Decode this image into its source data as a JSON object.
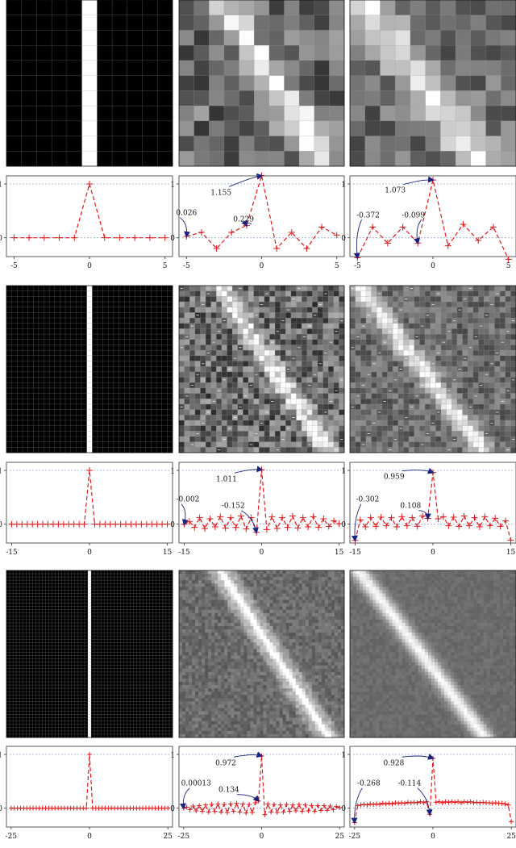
{
  "figure": {
    "colors": {
      "stem": "#e31a1c",
      "reference_line": "#8fa8c8",
      "annotation_arrow": "#1a237e",
      "axis": "#333333",
      "text": "#111111"
    }
  },
  "chart_data": [
    {
      "type": "heatmap",
      "n": 11,
      "pattern": "identity",
      "description_row": 1,
      "column": 1,
      "grid": true
    },
    {
      "type": "heatmap",
      "n": 11,
      "pattern": "noisy_diagonal",
      "seed": 11,
      "slope": 0.82,
      "width": 0.9,
      "noise": 0.45,
      "grid": true
    },
    {
      "type": "heatmap",
      "n": 11,
      "pattern": "noisy_diagonal",
      "seed": 17,
      "slope": 0.95,
      "width": 1.1,
      "noise": 0.35,
      "grid": true
    },
    {
      "type": "line",
      "x": [
        -5,
        -4,
        -3,
        -2,
        -1,
        0,
        1,
        2,
        3,
        4,
        5
      ],
      "y": [
        0,
        0,
        0,
        0,
        0,
        1,
        0,
        0,
        0,
        0,
        0
      ],
      "xticks": [
        "-5",
        "0",
        "5"
      ],
      "yticks": [
        "0",
        "1"
      ],
      "xlim": [
        -5.5,
        5.5
      ],
      "ylim": [
        -0.35,
        1.15
      ],
      "annotations": []
    },
    {
      "type": "line",
      "x": [
        -5,
        -4,
        -3,
        -2,
        -1,
        0,
        1,
        2,
        3,
        4,
        5
      ],
      "y": [
        0.026,
        0.1,
        -0.2,
        0.1,
        0.229,
        1.155,
        -0.2,
        0.1,
        -0.2,
        0.2,
        0.05
      ],
      "xticks": [
        "-5",
        "0",
        "5"
      ],
      "yticks": [
        "0",
        "1"
      ],
      "xlim": [
        -5.5,
        5.5
      ],
      "ylim": [
        -0.35,
        1.15
      ],
      "annotations": [
        {
          "text": "0.026",
          "point_index": 0,
          "text_x": -5.0,
          "text_y": 0.42
        },
        {
          "text": "0.229",
          "point_index": 4,
          "text_x": -1.2,
          "text_y": 0.3
        },
        {
          "text": "1.155",
          "point_index": 5,
          "text_x": -2.7,
          "text_y": 0.8
        }
      ]
    },
    {
      "type": "line",
      "x": [
        -5,
        -4,
        -3,
        -2,
        -1,
        0,
        1,
        2,
        3,
        4,
        5
      ],
      "y": [
        -0.372,
        0.2,
        -0.1,
        0.2,
        -0.099,
        1.073,
        -0.15,
        0.25,
        -0.05,
        0.2,
        -0.4
      ],
      "xticks": [
        "-5",
        "0",
        "5"
      ],
      "yticks": [
        "0",
        "1"
      ],
      "xlim": [
        -5.5,
        5.5
      ],
      "ylim": [
        -0.35,
        1.15
      ],
      "annotations": [
        {
          "text": "-0.372",
          "point_index": 0,
          "text_x": -4.3,
          "text_y": 0.38
        },
        {
          "text": "-0.099",
          "point_index": 4,
          "text_x": -1.3,
          "text_y": 0.38
        },
        {
          "text": "1.073",
          "point_index": 5,
          "text_x": -2.5,
          "text_y": 0.84
        }
      ]
    },
    {
      "type": "heatmap",
      "n": 31,
      "pattern": "identity",
      "grid": true
    },
    {
      "type": "heatmap",
      "n": 31,
      "pattern": "noisy_diagonal",
      "seed": 23,
      "slope": 0.82,
      "width": 1.4,
      "noise": 0.5,
      "grid": true,
      "dashes": true
    },
    {
      "type": "heatmap",
      "n": 31,
      "pattern": "noisy_diagonal",
      "seed": 29,
      "slope": 0.95,
      "width": 1.6,
      "noise": 0.3,
      "grid": true,
      "dashes": true
    },
    {
      "type": "line",
      "x": [
        -15,
        -14,
        -13,
        -12,
        -11,
        -10,
        -9,
        -8,
        -7,
        -6,
        -5,
        -4,
        -3,
        -2,
        -1,
        0,
        1,
        2,
        3,
        4,
        5,
        6,
        7,
        8,
        9,
        10,
        11,
        12,
        13,
        14,
        15
      ],
      "y": [
        0,
        0,
        0,
        0,
        0,
        0,
        0,
        0,
        0,
        0,
        0,
        0,
        0,
        0,
        0,
        1,
        0,
        0,
        0,
        0,
        0,
        0,
        0,
        0,
        0,
        0,
        0,
        0,
        0,
        0,
        0
      ],
      "xticks": [
        "-15",
        "0",
        "15"
      ],
      "yticks": [
        "0",
        "1"
      ],
      "xlim": [
        -16,
        16
      ],
      "ylim": [
        -0.35,
        1.15
      ],
      "annotations": []
    },
    {
      "type": "line",
      "x": [
        -15,
        -14,
        -13,
        -12,
        -11,
        -10,
        -9,
        -8,
        -7,
        -6,
        -5,
        -4,
        -3,
        -2,
        -1,
        0,
        1,
        2,
        3,
        4,
        5,
        6,
        7,
        8,
        9,
        10,
        11,
        12,
        13,
        14,
        15
      ],
      "y": [
        -0.002,
        0.05,
        -0.06,
        0.12,
        -0.08,
        0.1,
        -0.05,
        0.14,
        -0.07,
        0.12,
        -0.06,
        0.15,
        -0.09,
        0.12,
        -0.152,
        1.011,
        -0.1,
        0.14,
        -0.08,
        0.12,
        -0.06,
        0.15,
        -0.07,
        0.12,
        -0.05,
        0.14,
        -0.06,
        0.1,
        -0.04,
        0.06,
        0.01
      ],
      "xticks": [
        "-15",
        "0",
        "15"
      ],
      "yticks": [
        "0",
        "1"
      ],
      "xlim": [
        -16,
        16
      ],
      "ylim": [
        -0.35,
        1.15
      ],
      "annotations": [
        {
          "text": "-0.002",
          "point_index": 0,
          "text_x": -14.3,
          "text_y": 0.42
        },
        {
          "text": "-0.152",
          "point_index": 14,
          "text_x": -5.5,
          "text_y": 0.3
        },
        {
          "text": "1.011",
          "point_index": 15,
          "text_x": -6.8,
          "text_y": 0.8
        }
      ]
    },
    {
      "type": "line",
      "x": [
        -15,
        -14,
        -13,
        -12,
        -11,
        -10,
        -9,
        -8,
        -7,
        -6,
        -5,
        -4,
        -3,
        -2,
        -1,
        0,
        1,
        2,
        3,
        4,
        5,
        6,
        7,
        8,
        9,
        10,
        11,
        12,
        13,
        14,
        15
      ],
      "y": [
        -0.302,
        0.08,
        -0.05,
        0.12,
        -0.04,
        0.13,
        -0.03,
        0.12,
        -0.05,
        0.14,
        -0.03,
        0.12,
        -0.04,
        0.15,
        0.108,
        0.959,
        0.1,
        0.14,
        -0.03,
        0.13,
        -0.04,
        0.15,
        -0.03,
        0.12,
        -0.05,
        0.14,
        -0.03,
        0.11,
        -0.04,
        0.06,
        -0.3
      ],
      "xticks": [
        "-15",
        "0",
        "15"
      ],
      "yticks": [
        "0",
        "1"
      ],
      "xlim": [
        -16,
        16
      ],
      "ylim": [
        -0.35,
        1.15
      ],
      "annotations": [
        {
          "text": "-0.302",
          "point_index": 0,
          "text_x": -12.6,
          "text_y": 0.42
        },
        {
          "text": "0.108",
          "point_index": 14,
          "text_x": -4.3,
          "text_y": 0.3
        },
        {
          "text": "0.959",
          "point_index": 15,
          "text_x": -7.5,
          "text_y": 0.84
        }
      ]
    },
    {
      "type": "heatmap",
      "n": 51,
      "pattern": "identity",
      "grid": true
    },
    {
      "type": "heatmap",
      "n": 51,
      "pattern": "noisy_diagonal",
      "seed": 37,
      "slope": 0.82,
      "width": 2.4,
      "noise": 0.18,
      "grid": false,
      "ringing": true
    },
    {
      "type": "heatmap",
      "n": 51,
      "pattern": "noisy_diagonal",
      "seed": 41,
      "slope": 0.95,
      "width": 2.2,
      "noise": 0.08,
      "grid": false
    },
    {
      "type": "line",
      "x": [
        -25,
        -24,
        -23,
        -22,
        -21,
        -20,
        -19,
        -18,
        -17,
        -16,
        -15,
        -14,
        -13,
        -12,
        -11,
        -10,
        -9,
        -8,
        -7,
        -6,
        -5,
        -4,
        -3,
        -2,
        -1,
        0,
        1,
        2,
        3,
        4,
        5,
        6,
        7,
        8,
        9,
        10,
        11,
        12,
        13,
        14,
        15,
        16,
        17,
        18,
        19,
        20,
        21,
        22,
        23,
        24,
        25
      ],
      "y": [
        0,
        0,
        0,
        0,
        0,
        0,
        0,
        0,
        0,
        0,
        0,
        0,
        0,
        0,
        0,
        0,
        0,
        0,
        0,
        0,
        0,
        0,
        0,
        0,
        0,
        1,
        0,
        0,
        0,
        0,
        0,
        0,
        0,
        0,
        0,
        0,
        0,
        0,
        0,
        0,
        0,
        0,
        0,
        0,
        0,
        0,
        0,
        0,
        0,
        0,
        0
      ],
      "xticks": [
        "-25",
        "0",
        "25"
      ],
      "yticks": [
        "0",
        "1"
      ],
      "xlim": [
        -26.5,
        26.5
      ],
      "ylim": [
        -0.35,
        1.15
      ],
      "annotations": []
    },
    {
      "type": "line",
      "x": [
        -25,
        -24,
        -23,
        -22,
        -21,
        -20,
        -19,
        -18,
        -17,
        -16,
        -15,
        -14,
        -13,
        -12,
        -11,
        -10,
        -9,
        -8,
        -7,
        -6,
        -5,
        -4,
        -3,
        -2,
        -1,
        0,
        1,
        2,
        3,
        4,
        5,
        6,
        7,
        8,
        9,
        10,
        11,
        12,
        13,
        14,
        15,
        16,
        17,
        18,
        19,
        20,
        21,
        22,
        23,
        24,
        25
      ],
      "y": [
        0.00013,
        0.02,
        -0.03,
        0.04,
        -0.05,
        0.05,
        -0.06,
        0.06,
        -0.07,
        0.07,
        -0.06,
        0.08,
        -0.07,
        0.07,
        -0.08,
        0.08,
        -0.06,
        0.09,
        -0.07,
        0.08,
        -0.09,
        0.07,
        -0.08,
        0.1,
        0.134,
        0.972,
        -0.12,
        0.08,
        -0.07,
        0.07,
        -0.08,
        0.06,
        -0.07,
        0.07,
        -0.06,
        0.06,
        -0.05,
        0.07,
        -0.06,
        0.06,
        -0.05,
        0.05,
        -0.06,
        0.05,
        -0.04,
        0.05,
        -0.04,
        0.04,
        -0.03,
        0.03,
        0.01
      ],
      "xticks": [
        "-25",
        "0",
        "25"
      ],
      "yticks": [
        "0",
        "1"
      ],
      "xlim": [
        -26.5,
        26.5
      ],
      "ylim": [
        -0.35,
        1.15
      ],
      "annotations": [
        {
          "text": "0.00013",
          "point_index": 0,
          "text_x": -21.0,
          "text_y": 0.42
        },
        {
          "text": "0.134",
          "point_index": 24,
          "text_x": -10.5,
          "text_y": 0.3
        },
        {
          "text": "0.972",
          "point_index": 25,
          "text_x": -11.5,
          "text_y": 0.8
        }
      ]
    },
    {
      "type": "line",
      "x": [
        -25,
        -24,
        -23,
        -22,
        -21,
        -20,
        -19,
        -18,
        -17,
        -16,
        -15,
        -14,
        -13,
        -12,
        -11,
        -10,
        -9,
        -8,
        -7,
        -6,
        -5,
        -4,
        -3,
        -2,
        -1,
        0,
        1,
        2,
        3,
        4,
        5,
        6,
        7,
        8,
        9,
        10,
        11,
        12,
        13,
        14,
        15,
        16,
        17,
        18,
        19,
        20,
        21,
        22,
        23,
        24,
        25
      ],
      "y": [
        -0.268,
        0.05,
        0.06,
        0.07,
        0.06,
        0.08,
        0.07,
        0.08,
        0.07,
        0.09,
        0.08,
        0.09,
        0.08,
        0.1,
        0.09,
        0.1,
        0.09,
        0.11,
        0.1,
        0.11,
        0.1,
        0.12,
        0.1,
        0.12,
        -0.114,
        0.928,
        0.11,
        0.12,
        0.1,
        0.12,
        0.11,
        0.12,
        0.11,
        0.12,
        0.1,
        0.12,
        0.11,
        0.12,
        0.1,
        0.11,
        0.1,
        0.11,
        0.1,
        0.1,
        0.09,
        0.1,
        0.09,
        0.09,
        0.08,
        0.06,
        -0.25
      ],
      "xticks": [
        "-25",
        "0",
        "25"
      ],
      "yticks": [
        "0",
        "1"
      ],
      "xlim": [
        -26.5,
        26.5
      ],
      "ylim": [
        -0.35,
        1.15
      ],
      "annotations": [
        {
          "text": "-0.268",
          "point_index": 0,
          "text_x": -20.5,
          "text_y": 0.42
        },
        {
          "text": "-0.114",
          "point_index": 24,
          "text_x": -7.5,
          "text_y": 0.42
        },
        {
          "text": "0.928",
          "point_index": 25,
          "text_x": -12.5,
          "text_y": 0.8
        }
      ]
    }
  ]
}
